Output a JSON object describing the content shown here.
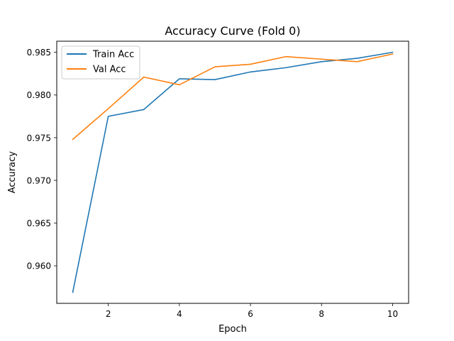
{
  "chart_data": {
    "type": "line",
    "title": "Accuracy Curve (Fold 0)",
    "xlabel": "Epoch",
    "ylabel": "Accuracy",
    "xlim": [
      0.55,
      10.45
    ],
    "ylim": [
      0.9556,
      0.9863
    ],
    "xticks": [
      2,
      4,
      6,
      8,
      10
    ],
    "xtick_labels": [
      "2",
      "4",
      "6",
      "8",
      "10"
    ],
    "yticks": [
      0.96,
      0.965,
      0.97,
      0.975,
      0.98,
      0.985
    ],
    "ytick_labels": [
      "0.960",
      "0.965",
      "0.970",
      "0.975",
      "0.980",
      "0.985"
    ],
    "grid": false,
    "legend_position": "upper-left",
    "x": [
      1,
      2,
      3,
      4,
      5,
      6,
      7,
      8,
      9,
      10
    ],
    "series": [
      {
        "name": "Train Acc",
        "color": "#1f77b4",
        "values": [
          0.9569,
          0.9775,
          0.9783,
          0.9819,
          0.9818,
          0.9827,
          0.9832,
          0.9839,
          0.9843,
          0.985
        ]
      },
      {
        "name": "Val Acc",
        "color": "#ff7f0e",
        "values": [
          0.9748,
          0.9784,
          0.9821,
          0.9812,
          0.9833,
          0.9836,
          0.9845,
          0.9842,
          0.9839,
          0.9848
        ]
      }
    ]
  }
}
